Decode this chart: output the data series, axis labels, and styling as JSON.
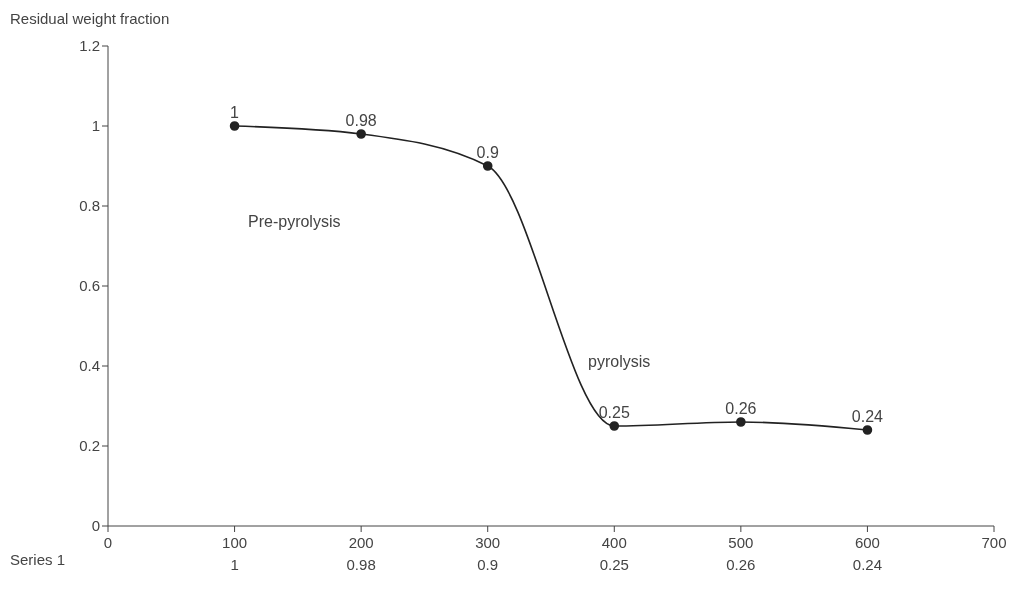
{
  "chart_data": {
    "type": "line",
    "ylabel": "Residual weight fraction",
    "categories": [
      "0",
      "100",
      "200",
      "300",
      "400",
      "500",
      "600",
      "700"
    ],
    "series": [
      {
        "name": "Series 1",
        "color": "#222222",
        "values": [
          null,
          1,
          0.98,
          0.9,
          0.25,
          0.26,
          0.24,
          null
        ]
      }
    ],
    "ylim": [
      0,
      1.2
    ],
    "yticks": [
      0,
      0.2,
      0.4,
      0.6,
      0.8,
      1,
      1.2
    ],
    "grid": false,
    "legend": false,
    "marker": "circle",
    "line_style": "solid",
    "data_labels": true,
    "annotations": [
      "Pre-pyrolysis",
      "pyrolysis",
      "1",
      "0.98",
      "0.9",
      "0.25",
      "0.26",
      "0.24"
    ]
  }
}
